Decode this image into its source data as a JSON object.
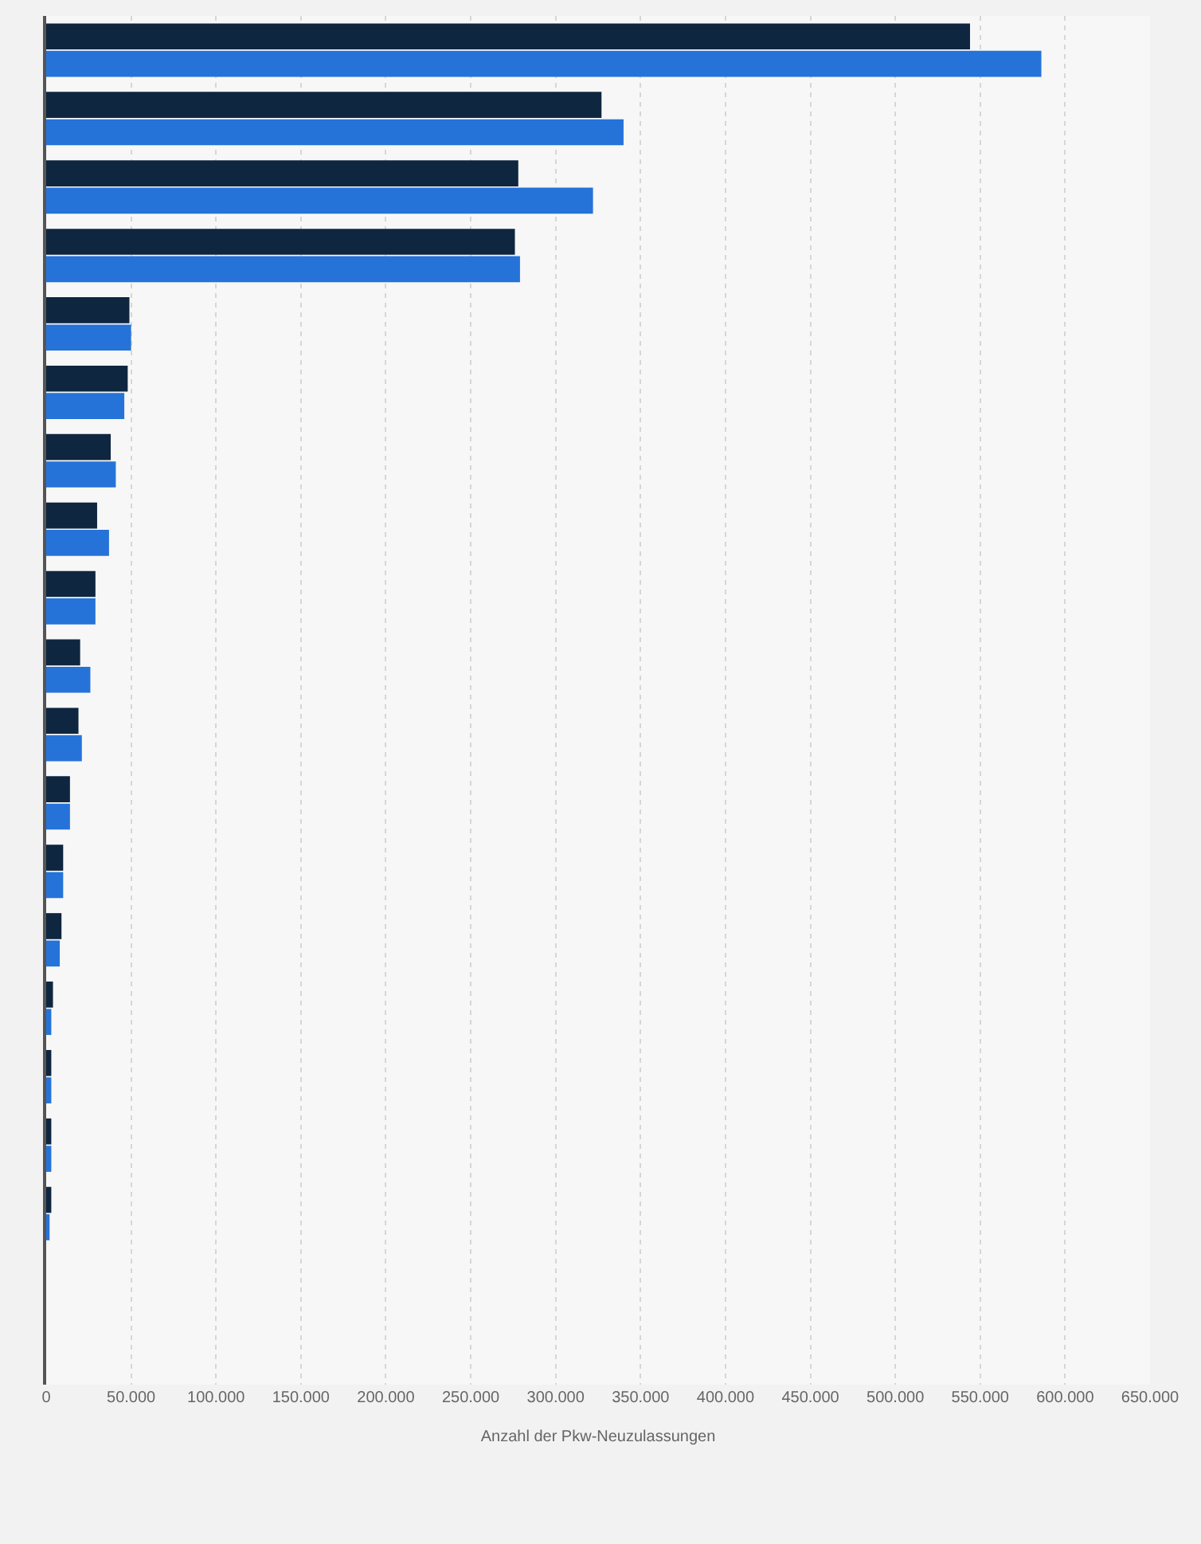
{
  "chart_data": {
    "type": "bar",
    "orientation": "horizontal",
    "xlabel": "Anzahl der Pkw-Neuzulassungen",
    "categories": [
      null,
      null,
      null,
      null,
      null,
      null,
      null,
      null,
      null,
      null,
      null,
      null,
      null,
      null,
      null,
      null,
      null,
      null,
      null,
      null
    ],
    "series": [
      {
        "color": "#0f2640",
        "values": [
          544000,
          327000,
          278000,
          276000,
          49000,
          48000,
          38000,
          30000,
          29000,
          20000,
          19000,
          14000,
          10000,
          9000,
          4000,
          3000,
          3000,
          3000,
          null,
          null
        ]
      },
      {
        "color": "#2573d9",
        "values": [
          586000,
          340000,
          322000,
          279000,
          50000,
          46000,
          41000,
          37000,
          29000,
          26000,
          21000,
          14000,
          10000,
          8000,
          3000,
          3000,
          3000,
          2000,
          null,
          null
        ]
      }
    ],
    "xlim": [
      0,
      650000
    ],
    "xticks": [
      0,
      {
        "value": 50000,
        "label": "50.000"
      },
      {
        "value": 100000,
        "label": "100.000"
      },
      {
        "value": 150000,
        "label": "150.000"
      },
      {
        "value": 200000,
        "label": "200.000"
      },
      {
        "value": 250000,
        "label": "250.000"
      },
      {
        "value": 300000,
        "label": "300.000"
      },
      {
        "value": 350000,
        "label": "350.000"
      },
      {
        "value": 400000,
        "label": "400.000"
      },
      {
        "value": 450000,
        "label": "450.000"
      },
      {
        "value": 500000,
        "label": "500.000"
      },
      {
        "value": 550000,
        "label": "550.000"
      },
      {
        "value": 600000,
        "label": "600.000"
      },
      {
        "value": 650000,
        "label": "650.000"
      }
    ],
    "grid": "x",
    "tick_labels": "x"
  }
}
